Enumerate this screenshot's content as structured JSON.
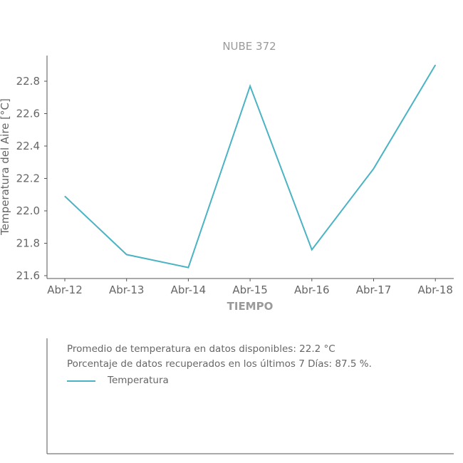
{
  "chart_data": {
    "type": "line",
    "title": "NUBE 372",
    "xlabel": "TIEMPO",
    "ylabel": "Temperatura del Aire [°C]",
    "categories": [
      "Abr-12",
      "Abr-13",
      "Abr-14",
      "Abr-15",
      "Abr-16",
      "Abr-17",
      "Abr-18"
    ],
    "series": [
      {
        "name": "Temperatura",
        "values": [
          22.09,
          21.73,
          21.65,
          22.77,
          21.76,
          22.26,
          22.9
        ],
        "color": "#4bb3c4"
      }
    ],
    "yticks": [
      "21.6",
      "21.8",
      "22.0",
      "22.2",
      "22.4",
      "22.6",
      "22.8"
    ],
    "ylim": [
      21.6,
      22.9
    ],
    "grid": false,
    "legend": "bottom-panel"
  },
  "info": {
    "average_text": "Promedio de temperatura en datos disponibles: 22.2 °C",
    "percentage_text": "Porcentaje de datos recuperados en los últimos 7 Días: 87.5 %.",
    "legend_label": "Temperatura"
  },
  "colors": {
    "line": "#4bb3c4",
    "axis": "#555555",
    "text": "#666666",
    "title": "#9a9a9a"
  }
}
